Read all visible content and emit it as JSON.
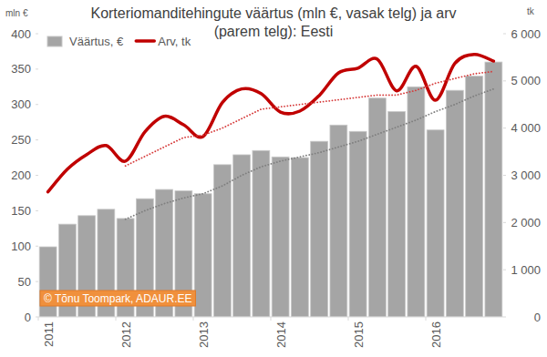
{
  "chart_data": {
    "type": "bar",
    "title": "Korteriomanditehingute väärtus (mln €, vasak telg) ja arv (parem telg): Eesti",
    "y_label": "mln €",
    "y2_label": "tk",
    "annotations": [
      "© Tõnu Toompark, ADAUR.EE"
    ],
    "categories": [
      "2011",
      null,
      null,
      null,
      "2012",
      null,
      null,
      null,
      "2013",
      null,
      null,
      null,
      "2014",
      null,
      null,
      null,
      "2015",
      null,
      null,
      null,
      "2016",
      null,
      null,
      null
    ],
    "series": [
      {
        "name": "Väärtus, €",
        "type": "bar",
        "color": "#a5a5a5",
        "values": [
          99,
          131,
          143,
          152,
          139,
          167,
          180,
          178,
          174,
          215,
          229,
          235,
          226,
          225,
          248,
          271,
          262,
          309,
          290,
          325,
          264,
          320,
          340,
          360
        ]
      },
      {
        "name": "Arv, tk",
        "type": "line",
        "axis": "y2",
        "color": "#c00000",
        "line_style": "smooth",
        "values": [
          2650,
          3130,
          3440,
          3630,
          3300,
          3920,
          4250,
          4070,
          3820,
          4540,
          4830,
          4730,
          4340,
          4360,
          4690,
          5170,
          5270,
          5460,
          4790,
          5310,
          4590,
          5370,
          5560,
          5420
        ]
      },
      {
        "type": "line",
        "axis": "y2",
        "color": "#d63a3a",
        "line_style": "dotted",
        "values": [
          null,
          null,
          null,
          null,
          3200,
          3400,
          3600,
          3800,
          3850,
          4000,
          4200,
          4400,
          4450,
          4500,
          4550,
          4600,
          4650,
          4700,
          4700,
          4800,
          4950,
          5050,
          5150,
          5200
        ]
      },
      {
        "type": "line",
        "color": "#7f7f7f",
        "line_style": "dotted",
        "values": [
          null,
          null,
          null,
          null,
          138,
          150,
          160,
          168,
          174,
          185,
          200,
          212,
          220,
          226,
          232,
          240,
          248,
          258,
          268,
          278,
          290,
          300,
          312,
          322
        ]
      }
    ],
    "ylim": [
      0,
      400
    ],
    "yticks": [
      0,
      50,
      100,
      150,
      200,
      250,
      300,
      350,
      400
    ],
    "y2lim": [
      0,
      6000
    ],
    "y2ticks": [
      0,
      {
        "value": 1000,
        "label": "1 000"
      },
      {
        "value": 2000,
        "label": "2 000"
      },
      {
        "value": 3000,
        "label": "3 000"
      },
      {
        "value": 4000,
        "label": "4 000"
      },
      {
        "value": 5000,
        "label": "5 000"
      },
      {
        "value": 6000,
        "label": "6 000"
      }
    ],
    "grid": false,
    "legend": "upper left"
  }
}
